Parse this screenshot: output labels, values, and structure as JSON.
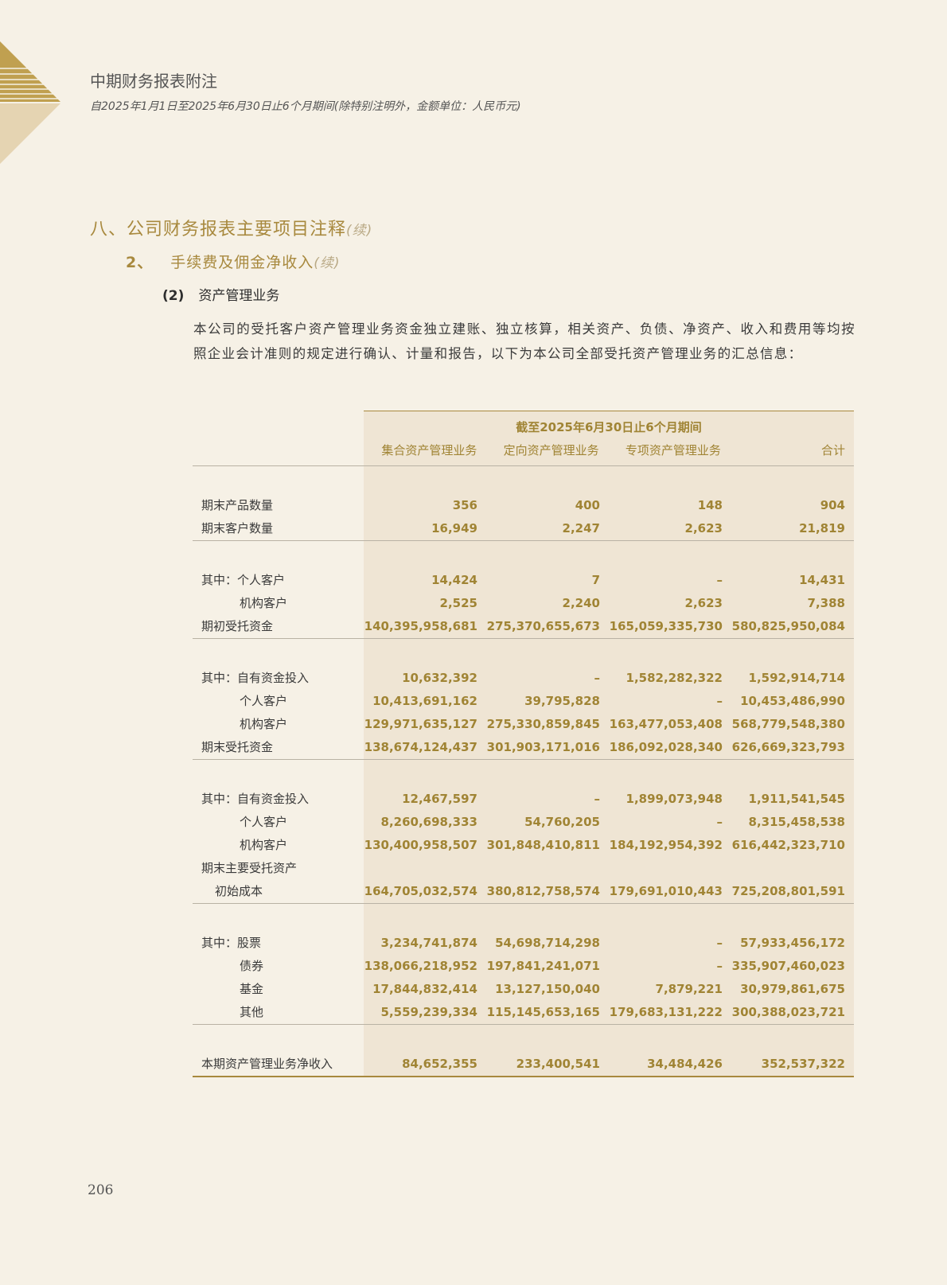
{
  "header": {
    "title": "中期财务报表附注",
    "subtitle": "自2025年1月1日至2025年6月30日止6个月期间(除特别注明外，金额单位：人民币元)"
  },
  "section": {
    "title": "八、公司财务报表主要项目注释",
    "continued": "(续)"
  },
  "subsection": {
    "number": "2、",
    "title": "手续费及佣金净收入",
    "continued": "(续)"
  },
  "item": {
    "number": "(2)",
    "title": "资产管理业务"
  },
  "paragraph": "本公司的受托客户资产管理业务资金独立建账、独立核算，相关资产、负债、净资产、收入和费用等均按照企业会计准则的规定进行确认、计量和报告，以下为本公司全部受托资产管理业务的汇总信息：",
  "table": {
    "period_header": "截至2025年6月30日止6个月期间",
    "columns": [
      "集合资产管理业务",
      "定向资产管理业务",
      "专项资产管理业务",
      "合计"
    ],
    "groups": [
      {
        "rows": [
          {
            "label": "期末产品数量",
            "indent": 0,
            "values": [
              "356",
              "400",
              "148",
              "904"
            ]
          },
          {
            "label": "期末客户数量",
            "indent": 0,
            "values": [
              "16,949",
              "2,247",
              "2,623",
              "21,819"
            ]
          }
        ]
      },
      {
        "rows": [
          {
            "label": "其中：个人客户",
            "indent": 0,
            "values": [
              "14,424",
              "7",
              "–",
              "14,431"
            ]
          },
          {
            "label": "机构客户",
            "indent": 1,
            "values": [
              "2,525",
              "2,240",
              "2,623",
              "7,388"
            ]
          },
          {
            "label": "期初受托资金",
            "indent": 0,
            "values": [
              "140,395,958,681",
              "275,370,655,673",
              "165,059,335,730",
              "580,825,950,084"
            ]
          }
        ]
      },
      {
        "rows": [
          {
            "label": "其中：自有资金投入",
            "indent": 0,
            "values": [
              "10,632,392",
              "–",
              "1,582,282,322",
              "1,592,914,714"
            ]
          },
          {
            "label": "个人客户",
            "indent": 1,
            "values": [
              "10,413,691,162",
              "39,795,828",
              "–",
              "10,453,486,990"
            ]
          },
          {
            "label": "机构客户",
            "indent": 1,
            "values": [
              "129,971,635,127",
              "275,330,859,845",
              "163,477,053,408",
              "568,779,548,380"
            ]
          },
          {
            "label": "期末受托资金",
            "indent": 0,
            "values": [
              "138,674,124,437",
              "301,903,171,016",
              "186,092,028,340",
              "626,669,323,793"
            ]
          }
        ]
      },
      {
        "rows": [
          {
            "label": "其中：自有资金投入",
            "indent": 0,
            "values": [
              "12,467,597",
              "–",
              "1,899,073,948",
              "1,911,541,545"
            ]
          },
          {
            "label": "个人客户",
            "indent": 1,
            "values": [
              "8,260,698,333",
              "54,760,205",
              "–",
              "8,315,458,538"
            ]
          },
          {
            "label": "机构客户",
            "indent": 1,
            "values": [
              "130,400,958,507",
              "301,848,410,811",
              "184,192,954,392",
              "616,442,323,710"
            ]
          },
          {
            "label": "期末主要受托资产",
            "indent": 0,
            "values": [
              "",
              "",
              "",
              ""
            ]
          },
          {
            "label": "初始成本",
            "indent": 2,
            "values": [
              "164,705,032,574",
              "380,812,758,574",
              "179,691,010,443",
              "725,208,801,591"
            ]
          }
        ]
      },
      {
        "rows": [
          {
            "label": "其中：股票",
            "indent": 0,
            "values": [
              "3,234,741,874",
              "54,698,714,298",
              "–",
              "57,933,456,172"
            ]
          },
          {
            "label": "债券",
            "indent": 1,
            "values": [
              "138,066,218,952",
              "197,841,241,071",
              "–",
              "335,907,460,023"
            ]
          },
          {
            "label": "基金",
            "indent": 1,
            "values": [
              "17,844,832,414",
              "13,127,150,040",
              "7,879,221",
              "30,979,861,675"
            ]
          },
          {
            "label": "其他",
            "indent": 1,
            "values": [
              "5,559,239,334",
              "115,145,653,165",
              "179,683,131,222",
              "300,388,023,721"
            ]
          }
        ]
      },
      {
        "rows": [
          {
            "label": "本期资产管理业务净收入",
            "indent": 0,
            "values": [
              "84,652,355",
              "233,400,541",
              "34,484,426",
              "352,537,322"
            ]
          }
        ]
      }
    ]
  },
  "page_number": "206",
  "colors": {
    "gold": "#a8893e",
    "number_gold": "#a08434",
    "page_bg": "#f6f1e6",
    "table_bg": "#efe5d4"
  }
}
